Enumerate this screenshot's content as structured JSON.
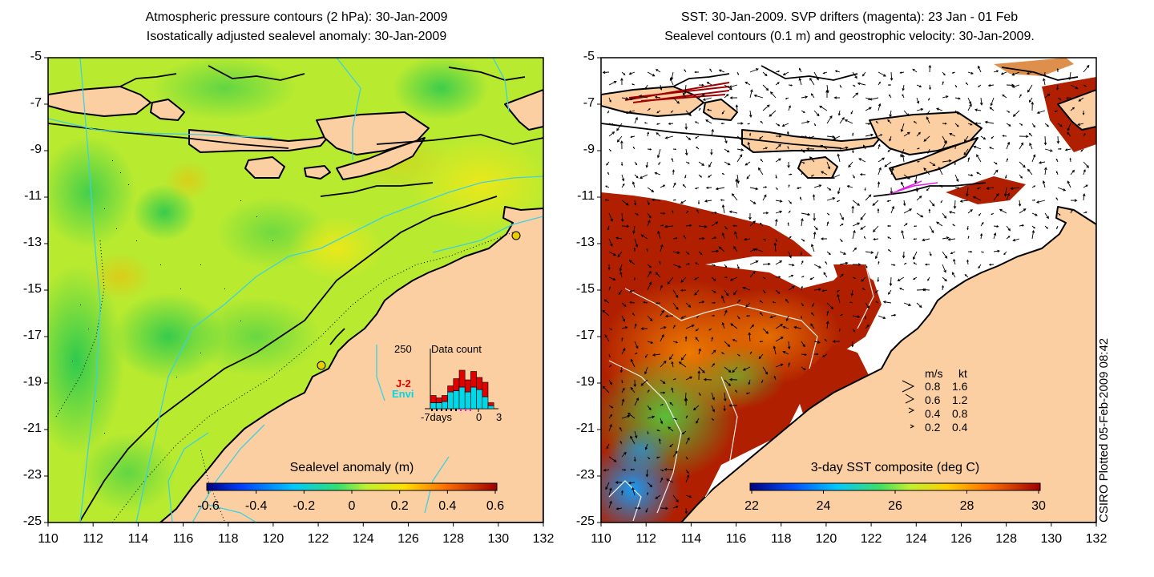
{
  "left_panel": {
    "title_line1": "Atmospheric pressure contours (2 hPa): 30-Jan-2009",
    "title_line2": "Isostatically adjusted sealevel anomaly: 30-Jan-2009",
    "colorbar": {
      "label": "Sealevel anomaly (m)",
      "ticks": [
        "-0.6",
        "-0.4",
        "-0.2",
        "0",
        "0.2",
        "0.4",
        "0.6"
      ],
      "range": [
        -0.6,
        0.6
      ]
    },
    "inset": {
      "title": "Data count",
      "y_max_label": "250",
      "legend": [
        {
          "label": "J-2",
          "color": "#e00000"
        },
        {
          "label": "Envi",
          "color": "#00d8e8"
        }
      ],
      "x_ticks": [
        "-7days",
        "0",
        "3"
      ],
      "bars_envi": [
        0.1,
        0.1,
        0.12,
        0.28,
        0.3,
        0.36,
        0.28,
        0.36,
        0.32,
        0.2,
        0.05
      ],
      "bars_j2": [
        0.12,
        0.08,
        0.1,
        0.1,
        0.2,
        0.28,
        0.2,
        0.26,
        0.2,
        0.24,
        0.05
      ]
    }
  },
  "right_panel": {
    "title_line1": "SST: 30-Jan-2009. SVP drifters (magenta): 23 Jan - 01 Feb",
    "title_line2": "Sealevel contours (0.1 m) and geostrophic velocity: 30-Jan-2009.",
    "colorbar": {
      "label": "3-day SST composite (deg C)",
      "ticks": [
        "22",
        "24",
        "26",
        "28",
        "30"
      ],
      "range": [
        22,
        30
      ]
    },
    "velocity_legend": {
      "header_ms": "m/s",
      "header_kt": "kt",
      "rows": [
        {
          "ms": "0.8",
          "kt": "1.6"
        },
        {
          "ms": "0.6",
          "kt": "1.2"
        },
        {
          "ms": "0.4",
          "kt": "0.8"
        },
        {
          "ms": "0.2",
          "kt": "0.4"
        }
      ]
    }
  },
  "axes": {
    "y_ticks": [
      "-5",
      "-7",
      "-9",
      "-11",
      "-13",
      "-15",
      "-17",
      "-19",
      "-21",
      "-23",
      "-25"
    ],
    "x_ticks": [
      "110",
      "112",
      "114",
      "116",
      "118",
      "120",
      "122",
      "124",
      "126",
      "128",
      "130",
      "132"
    ]
  },
  "credit": "CSIRO Plotted 05-Feb-2009 08:42",
  "colors": {
    "land": "#fbcfa2",
    "coast": "#000000",
    "contour_cyan": "#3fd0e0",
    "sst_mask": "#ffffff"
  }
}
